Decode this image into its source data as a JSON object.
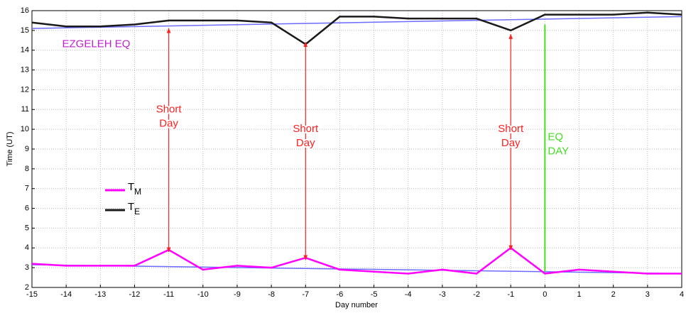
{
  "chart_data": {
    "type": "line",
    "x_label": "Day number",
    "y_label": "Time (UT)",
    "x": [
      -15,
      -14,
      -13,
      -12,
      -11,
      -10,
      -9,
      -8,
      -7,
      -6,
      -5,
      -4,
      -3,
      -2,
      -1,
      0,
      1,
      2,
      3,
      4
    ],
    "series": [
      {
        "name": "T",
        "name_sub": "M",
        "color": "#ff00ff",
        "values": [
          3.2,
          3.1,
          3.1,
          3.1,
          3.9,
          2.9,
          3.1,
          3.0,
          3.5,
          2.9,
          2.8,
          2.7,
          2.9,
          2.7,
          4.0,
          2.7,
          2.9,
          2.8,
          2.7,
          2.7
        ]
      },
      {
        "name": "T",
        "name_sub": "E",
        "color": "#1a1a1a",
        "values": [
          15.4,
          15.2,
          15.2,
          15.3,
          15.5,
          15.5,
          15.5,
          15.4,
          14.3,
          15.7,
          15.7,
          15.6,
          15.6,
          15.6,
          15.0,
          15.8,
          15.8,
          15.8,
          15.9,
          15.8
        ]
      }
    ],
    "trend_lines": [
      {
        "color": "#6b6bff",
        "x": [
          -15,
          4
        ],
        "values": [
          15.1,
          15.7
        ]
      },
      {
        "color": "#6b6bff",
        "x": [
          -15,
          4
        ],
        "values": [
          3.15,
          2.7
        ]
      }
    ],
    "xlim": [
      -15,
      4
    ],
    "ylim": [
      2,
      16
    ],
    "xticks": [
      -15,
      -14,
      -13,
      -12,
      -11,
      -10,
      -9,
      -8,
      -7,
      -6,
      -5,
      -4,
      -3,
      -2,
      -1,
      0,
      1,
      2,
      3,
      4
    ],
    "yticks": [
      2,
      3,
      4,
      5,
      6,
      7,
      8,
      9,
      10,
      11,
      12,
      13,
      14,
      15,
      16
    ],
    "grid": true,
    "annotations": [
      {
        "lines": [
          "EZGELEH  EQ"
        ],
        "color": "#c020d0",
        "x": -14.2,
        "y": 14.3,
        "anchor": "start"
      },
      {
        "lines": [
          "Short",
          "Day"
        ],
        "color": "#ff2020",
        "x": -11,
        "y": 11.0,
        "anchor": "end",
        "arrow": [
          15.1,
          3.8
        ]
      },
      {
        "lines": [
          "Short",
          "Day"
        ],
        "color": "#ff2020",
        "x": -7,
        "y": 10.0,
        "anchor": "end",
        "arrow": [
          14.4,
          3.4
        ]
      },
      {
        "lines": [
          "Short",
          "Day"
        ],
        "color": "#ff2020",
        "x": -1,
        "y": 10.0,
        "anchor": "end",
        "arrow": [
          14.8,
          3.9
        ]
      },
      {
        "lines": [
          "EQ",
          "DAY"
        ],
        "color": "#44dd22",
        "x": 0,
        "y": 9.6,
        "anchor": "start",
        "marker_line": [
          15.3,
          2.8
        ]
      }
    ]
  }
}
